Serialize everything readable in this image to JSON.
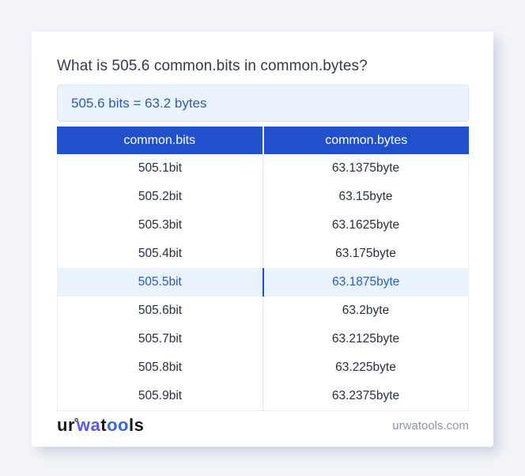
{
  "heading": "What is 505.6 common.bits in common.bytes?",
  "result_box": {
    "text": "505.6 bits = 63.2 bytes"
  },
  "table": {
    "headers": [
      "common.bits",
      "common.bytes"
    ],
    "rows": [
      {
        "bits": "505.1bit",
        "bytes": "63.1375byte",
        "highlighted": false
      },
      {
        "bits": "505.2bit",
        "bytes": "63.15byte",
        "highlighted": false
      },
      {
        "bits": "505.3bit",
        "bytes": "63.1625byte",
        "highlighted": false
      },
      {
        "bits": "505.4bit",
        "bytes": "63.175byte",
        "highlighted": false
      },
      {
        "bits": "505.5bit",
        "bytes": "63.1875byte",
        "highlighted": true
      },
      {
        "bits": "505.6bit",
        "bytes": "63.2byte",
        "highlighted": false
      },
      {
        "bits": "505.7bit",
        "bytes": "63.2125byte",
        "highlighted": false
      },
      {
        "bits": "505.8bit",
        "bytes": "63.225byte",
        "highlighted": false
      },
      {
        "bits": "505.9bit",
        "bytes": "63.2375byte",
        "highlighted": false
      }
    ]
  },
  "footer": {
    "logo_segments": [
      {
        "text": "ur",
        "color": "#17181c"
      },
      {
        "text": "°",
        "color": "#17181c",
        "ring": true
      },
      {
        "text": "wa",
        "color": "#585be8"
      },
      {
        "text": "t",
        "color": "#17181c"
      },
      {
        "text": "oo",
        "color": "#3966e0"
      },
      {
        "text": "ls",
        "color": "#17181c"
      }
    ],
    "site_label": "urwatools.com"
  },
  "colors": {
    "page_bg": "#f3f4f9",
    "card_bg": "#ffffff",
    "header_bg": "#2150cd",
    "header_text": "#ffffff",
    "result_bg": "#eaf2fc",
    "result_border": "#d8e5f5",
    "accent_text": "#2a5db2",
    "heading_text": "#313b4b",
    "row_text": "#273040",
    "highlight_bg": "#eaf3fd",
    "divider": "#e4e9f1",
    "highlight_divider": "#1d4ed8",
    "table_border": "#eaedf4",
    "footer_site_text": "#8d95a6"
  }
}
